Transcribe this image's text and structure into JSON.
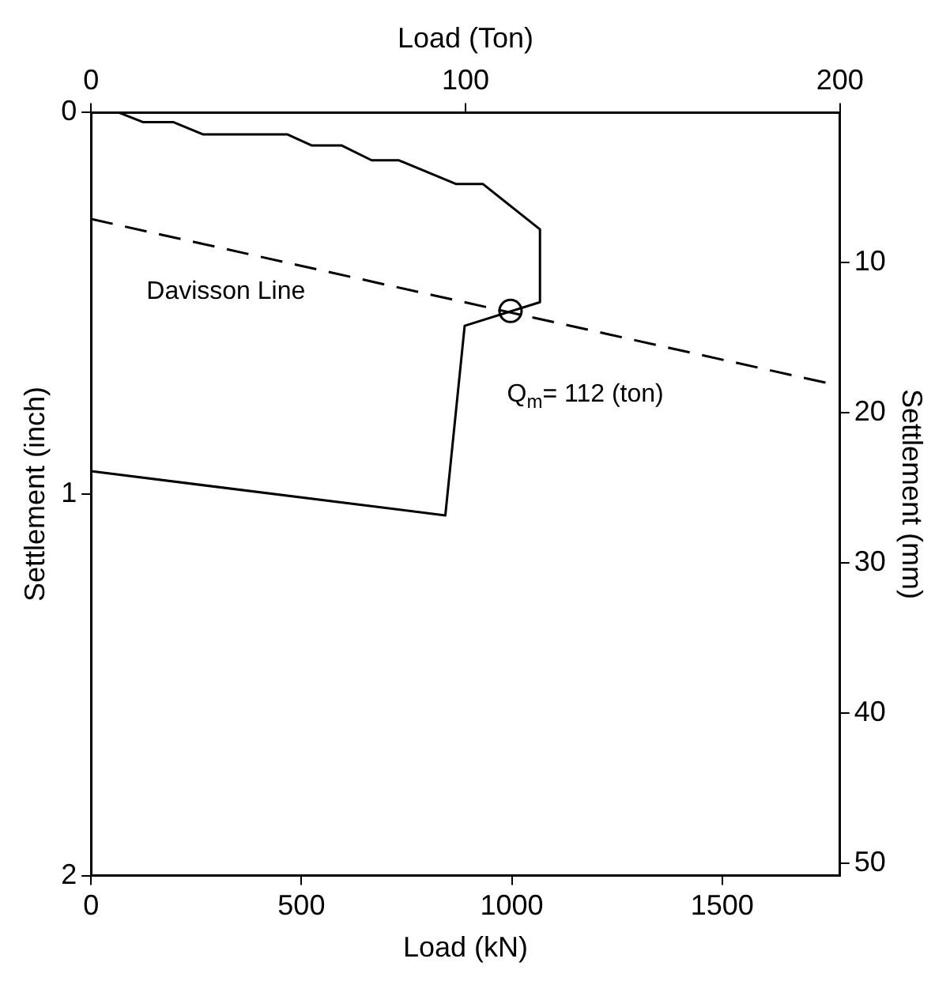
{
  "chart_data": {
    "type": "line",
    "xlabel": "Load (kN)",
    "x2label": "Load (Ton)",
    "ylabel": "Settlement (inch)",
    "y2label": "Settlement (mm)",
    "xlim": [
      0,
      1780
    ],
    "xticks": [
      0,
      500,
      1000,
      1500
    ],
    "x2lim": [
      0,
      200
    ],
    "x2ticks": [
      0,
      100,
      200
    ],
    "ylim": [
      2,
      0
    ],
    "yticks": [
      0,
      1,
      2
    ],
    "y2lim": [
      50.8,
      0
    ],
    "y2ticks": [
      10,
      20,
      30,
      40,
      50
    ],
    "grid": false,
    "legend": false,
    "marker": "none",
    "series": [
      {
        "color": "#000000",
        "line_style": "solid",
        "x": [
          0,
          66,
          123,
          195,
          266,
          466,
          524,
          595,
          667,
          731,
          867,
          931,
          1067,
          1067,
          888,
          842,
          0
        ],
        "values": [
          0,
          0,
          0.025,
          0.025,
          0.057,
          0.057,
          0.086,
          0.086,
          0.125,
          0.125,
          0.187,
          0.187,
          0.306,
          0.497,
          0.559,
          1.056,
          0.94
        ]
      },
      {
        "type": "line",
        "color": "#000000",
        "line_style": "dashed",
        "x": [
          0,
          1750
        ],
        "values": [
          0.279,
          0.709
        ]
      },
      {
        "type": "scatter",
        "color": "#000000",
        "marker": "circle",
        "x": [
          997
        ],
        "values": [
          0.52
        ]
      }
    ],
    "annotations": [
      "Davisson Line",
      "Q$_{m}$= 112 (ton)"
    ]
  }
}
